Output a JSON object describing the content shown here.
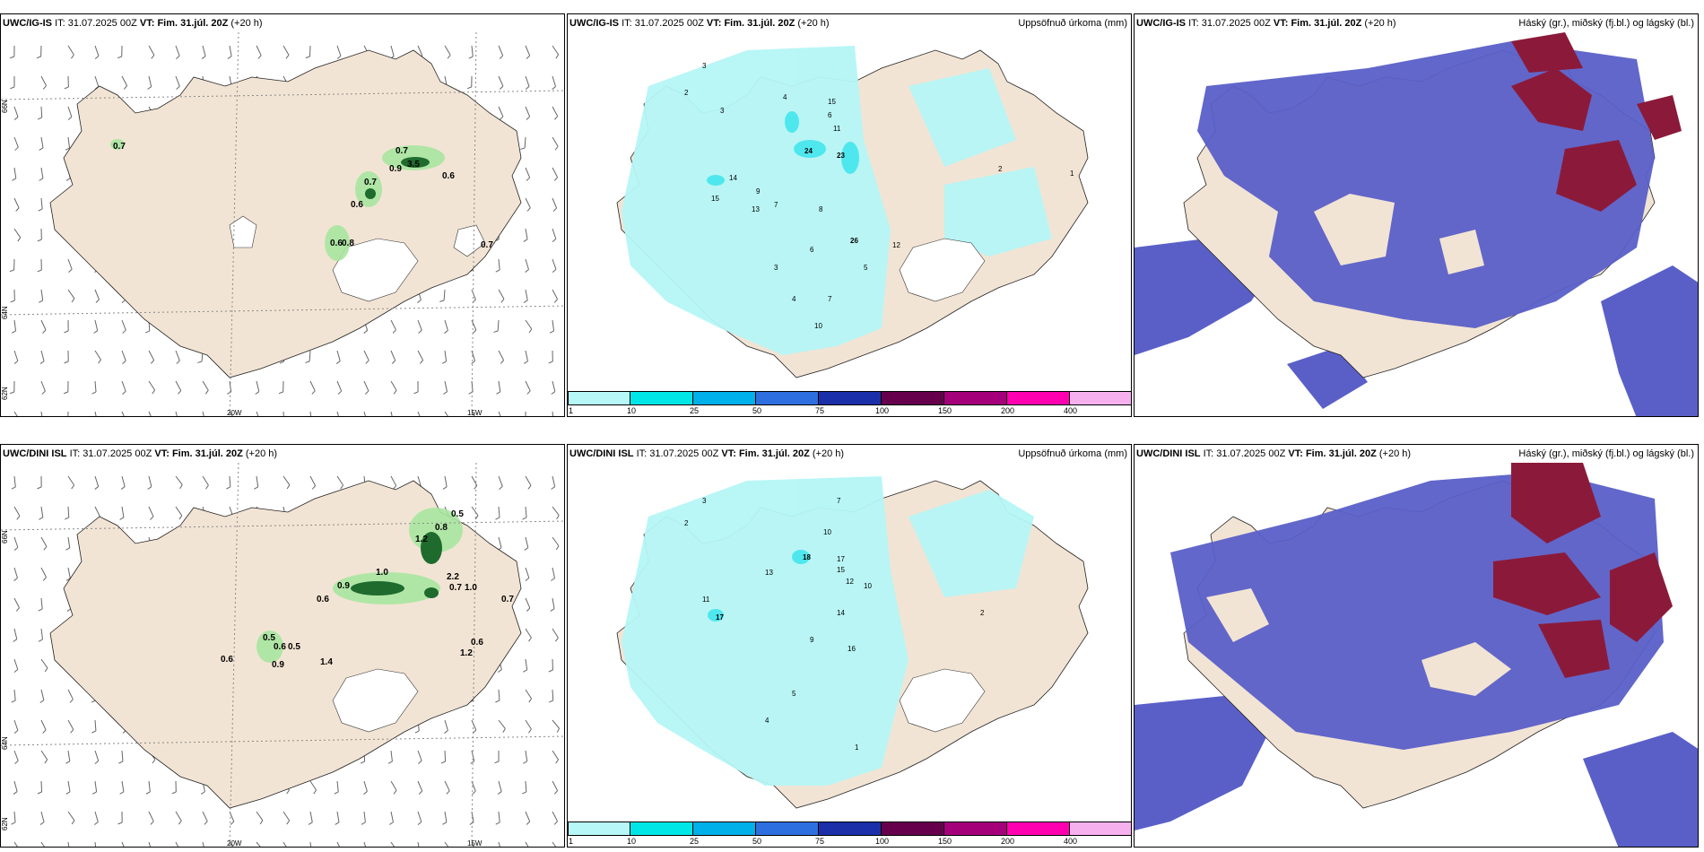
{
  "panels": [
    {
      "model": "UWC/IG-IS",
      "it_label": "IT:",
      "it": "31.07.2025 00Z",
      "vt_label": "VT:",
      "vt": "Fim. 31.júl. 20Z",
      "lead": "(+20 h)",
      "title": ""
    },
    {
      "model": "UWC/IG-IS",
      "it_label": "IT:",
      "it": "31.07.2025 00Z",
      "vt_label": "VT:",
      "vt": "Fim. 31.júl. 20Z",
      "lead": "(+20 h)",
      "title": "Uppsöfnuð úrkoma (mm)"
    },
    {
      "model": "UWC/IG-IS",
      "it_label": "IT:",
      "it": "31.07.2025 00Z",
      "vt_label": "VT:",
      "vt": "Fim. 31.júl. 20Z",
      "lead": "(+20 h)",
      "title": "Háský (gr.), miðský (fj.bl.) og lágský (bl.)"
    },
    {
      "model": "UWC/DINI ISL",
      "it_label": "IT:",
      "it": "31.07.2025 00Z",
      "vt_label": "VT:",
      "vt": "Fim. 31.júl. 20Z",
      "lead": "(+20 h)",
      "title": ""
    },
    {
      "model": "UWC/DINI ISL",
      "it_label": "IT:",
      "it": "31.07.2025 00Z",
      "vt_label": "VT:",
      "vt": "Fim. 31.júl. 20Z",
      "lead": "(+20 h)",
      "title": "Uppsöfnuð úrkoma (mm)"
    },
    {
      "model": "UWC/DINI ISL",
      "it_label": "IT:",
      "it": "31.07.2025 00Z",
      "vt_label": "VT:",
      "vt": "Fim. 31.júl. 20Z",
      "lead": "(+20 h)",
      "title": "Háský (gr.), miðský (fj.bl.) og lágský (bl.)"
    }
  ],
  "grid_labels": {
    "lat66": "66N",
    "lat64": "64N",
    "lat62": "62N",
    "lon20": "20W",
    "lon15": "15W"
  },
  "colorbar": {
    "ticks": [
      "1",
      "10",
      "25",
      "50",
      "75",
      "100",
      "150",
      "200",
      "400"
    ],
    "colors": [
      "#b8f7f7",
      "#00e6e6",
      "#00b0e8",
      "#2e6fe0",
      "#1a2fa8",
      "#66004d",
      "#a3007a",
      "#ff00b0",
      "#f7b0ee"
    ]
  },
  "colors": {
    "land": "#f2e4d4",
    "precip_light": "#b5f6f6",
    "precip_med": "#4fe7ee",
    "cloud_blue": "#5a5fc8",
    "cloud_red": "#8b1a3a",
    "green": "#a8e6a0",
    "green_dark": "#1f6b2e"
  },
  "top_wind_precip": [
    "0.7",
    "0.7",
    "0.9",
    "3.5",
    "0.6",
    "0.7",
    "0.6",
    "0.6",
    "0.8",
    "0.7"
  ],
  "bottom_wind_precip": [
    "0.5",
    "0.8",
    "1.2",
    "1.0",
    "0.9",
    "0.6",
    "2.2",
    "0.7",
    "1.0",
    "0.7",
    "0.5",
    "0.6",
    "0.5",
    "0.9",
    "1.4",
    "0.6",
    "1.2",
    "0.6"
  ],
  "top_accum": [
    "3",
    "2",
    "3",
    "4",
    "6",
    "11",
    "15",
    "24",
    "23",
    "14",
    "15",
    "9",
    "13",
    "7",
    "8",
    "26",
    "12",
    "5",
    "6",
    "3",
    "4",
    "7",
    "10",
    "2",
    "1"
  ],
  "bottom_accum": [
    "3",
    "2",
    "7",
    "10",
    "18",
    "17",
    "15",
    "12",
    "13",
    "11",
    "17",
    "10",
    "16",
    "14",
    "9",
    "2",
    "5",
    "4",
    "1"
  ]
}
